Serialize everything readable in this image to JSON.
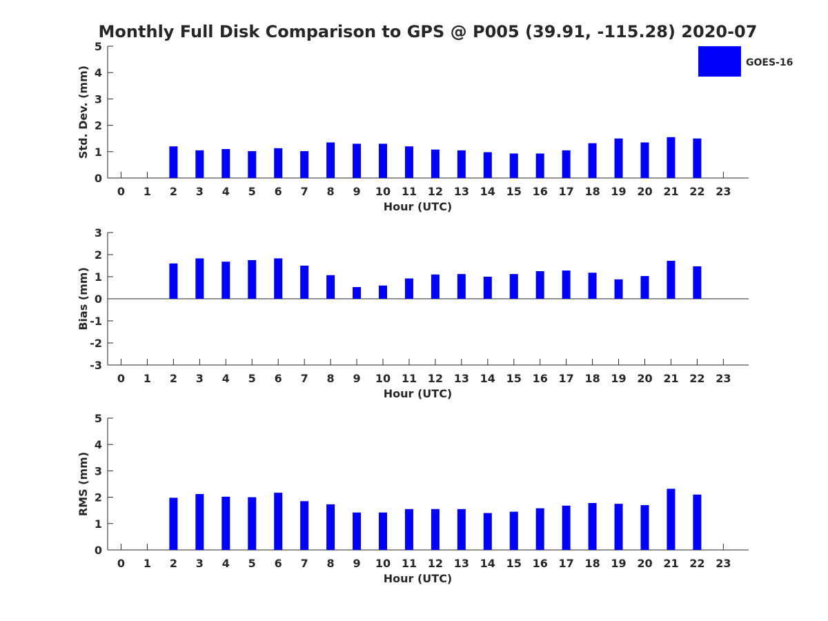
{
  "figure": {
    "title": "Monthly Full Disk Comparison to GPS @ P005 (39.91, -115.28) 2020-07"
  },
  "legend": {
    "label": "GOES-16",
    "color": "#0000ff",
    "placement": "top-right"
  },
  "chart_data": [
    {
      "type": "bar",
      "name": "std-dev",
      "categories": [
        "0",
        "1",
        "2",
        "3",
        "4",
        "5",
        "6",
        "7",
        "8",
        "9",
        "10",
        "11",
        "12",
        "13",
        "14",
        "15",
        "16",
        "17",
        "18",
        "19",
        "20",
        "21",
        "22",
        "23"
      ],
      "series": [
        {
          "name": "GOES-16",
          "color": "#0000ff",
          "values": [
            null,
            null,
            1.2,
            1.05,
            1.1,
            1.02,
            1.13,
            1.02,
            1.35,
            1.3,
            1.3,
            1.2,
            1.08,
            1.05,
            0.98,
            0.93,
            0.93,
            1.05,
            1.32,
            1.5,
            1.35,
            1.55,
            1.5,
            null
          ]
        }
      ],
      "xlabel": "Hour (UTC)",
      "ylabel": "Std. Dev. (mm)",
      "ylim": [
        0,
        5
      ],
      "yticks": [
        0,
        1,
        2,
        3,
        4,
        5
      ],
      "grid": false
    },
    {
      "type": "bar",
      "name": "bias",
      "categories": [
        "0",
        "1",
        "2",
        "3",
        "4",
        "5",
        "6",
        "7",
        "8",
        "9",
        "10",
        "11",
        "12",
        "13",
        "14",
        "15",
        "16",
        "17",
        "18",
        "19",
        "20",
        "21",
        "22",
        "23"
      ],
      "series": [
        {
          "name": "GOES-16",
          "color": "#0000ff",
          "values": [
            null,
            null,
            1.6,
            1.83,
            1.68,
            1.75,
            1.83,
            1.5,
            1.07,
            0.53,
            0.6,
            0.92,
            1.1,
            1.12,
            1.0,
            1.12,
            1.25,
            1.28,
            1.18,
            0.88,
            1.03,
            1.72,
            1.47,
            null
          ]
        }
      ],
      "xlabel": "Hour (UTC)",
      "ylabel": "Bias (mm)",
      "ylim": [
        -3,
        3
      ],
      "yticks": [
        -3,
        -2,
        -1,
        0,
        1,
        2,
        3
      ],
      "grid": false
    },
    {
      "type": "bar",
      "name": "rms",
      "categories": [
        "0",
        "1",
        "2",
        "3",
        "4",
        "5",
        "6",
        "7",
        "8",
        "9",
        "10",
        "11",
        "12",
        "13",
        "14",
        "15",
        "16",
        "17",
        "18",
        "19",
        "20",
        "21",
        "22",
        "23"
      ],
      "series": [
        {
          "name": "GOES-16",
          "color": "#0000ff",
          "values": [
            null,
            null,
            1.98,
            2.12,
            2.02,
            2.0,
            2.17,
            1.85,
            1.73,
            1.42,
            1.42,
            1.55,
            1.55,
            1.55,
            1.4,
            1.45,
            1.58,
            1.68,
            1.78,
            1.75,
            1.7,
            2.32,
            2.1,
            null
          ]
        }
      ],
      "xlabel": "Hour (UTC)",
      "ylabel": "RMS (mm)",
      "ylim": [
        0,
        5
      ],
      "yticks": [
        0,
        1,
        2,
        3,
        4,
        5
      ],
      "grid": false
    }
  ]
}
